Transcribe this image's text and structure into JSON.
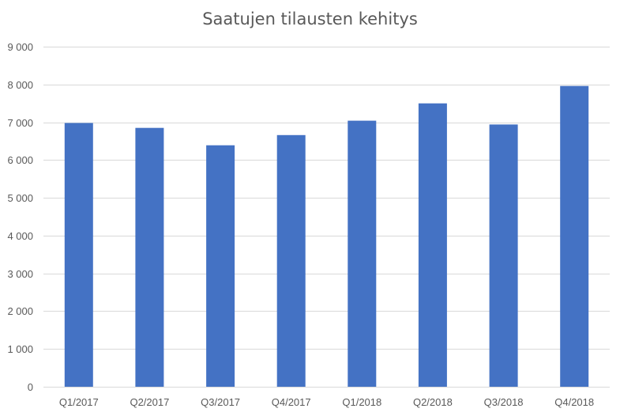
{
  "chart_data": {
    "type": "bar",
    "title": "Saatujen tilausten kehitys",
    "xlabel": "",
    "ylabel": "",
    "categories": [
      "Q1/2017",
      "Q2/2017",
      "Q3/2017",
      "Q4/2017",
      "Q1/2018",
      "Q2/2018",
      "Q3/2018",
      "Q4/2018"
    ],
    "series": [
      {
        "values": [
          6980,
          6850,
          6390,
          6660,
          7040,
          7500,
          6940,
          7960
        ],
        "color": "#4472c4"
      }
    ],
    "ylim": [
      0,
      9000
    ],
    "yticks": [
      0,
      1000,
      2000,
      3000,
      4000,
      5000,
      6000,
      7000,
      8000,
      9000
    ],
    "ytick_labels": [
      "0",
      "1 000",
      "2 000",
      "3 000",
      "4 000",
      "5 000",
      "6 000",
      "7 000",
      "8 000",
      "9 000"
    ],
    "grid": true,
    "legend": "none"
  }
}
